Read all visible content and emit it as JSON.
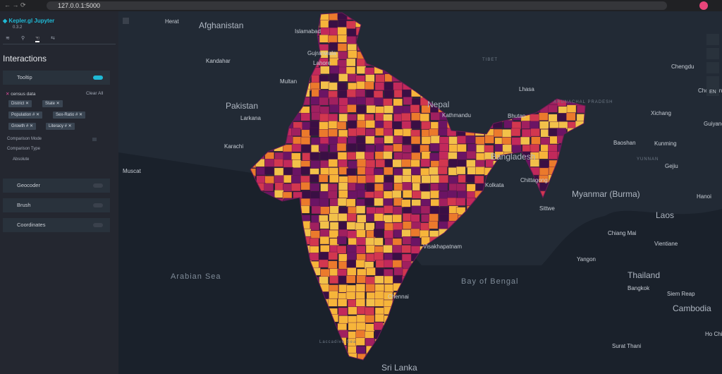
{
  "browser": {
    "url": "127.0.0.1:5000"
  },
  "sidebar": {
    "app_title": "Kepler.gl Jupyter",
    "version": "0.3.2",
    "panel_title": "Interactions",
    "tooltip": {
      "label": "Tooltip",
      "dataset": "census data",
      "clear": "Clear All",
      "fields": [
        "District",
        "State",
        "Population",
        "Sex-Ratio",
        "Growth",
        "Literacy"
      ],
      "comparison_mode": "Comparison Mode",
      "comparison_type": "Comparison Type",
      "comparison_value": "Absolute"
    },
    "interactions": [
      "Geocoder",
      "Brush",
      "Coordinates"
    ]
  },
  "map": {
    "language": "EN",
    "labels": [
      "Herat",
      "Afghanistan",
      "Islamabad",
      "Kandahar",
      "Gujranwala",
      "Lahore",
      "Multan",
      "Pakistan",
      "Larkana",
      "Karachi",
      "Muscat",
      "TIBET",
      "Lhasa",
      "Nepal",
      "Kathmandu",
      "Bhutan",
      "ARUNACHAL PRADESH",
      "Chengdu",
      "Chongqing",
      "Xichang",
      "Guiyang",
      "Baoshan",
      "Kunming",
      "YUNNAN",
      "Gejiu",
      "Bangladesh",
      "Chittagong",
      "Kolkata",
      "Myanmar (Burma)",
      "Sittwe",
      "Laos",
      "Hanoi",
      "Chiang Mai",
      "Vientiane",
      "Yangon",
      "Thailand",
      "Bangkok",
      "Siem Reap",
      "Cambodia",
      "Ho Chi Minh City",
      "Surat Thani",
      "Arabian Sea",
      "Bay of Bengal",
      "Sri Lanka",
      "Laccadive Sea",
      "Visakhapatnam",
      "Chennai"
    ]
  }
}
